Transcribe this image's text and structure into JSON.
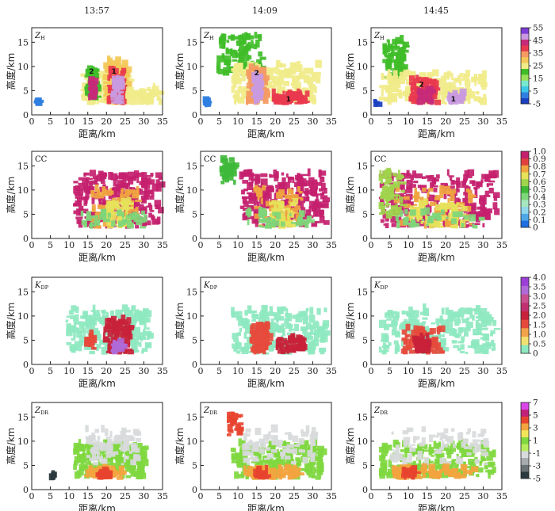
{
  "figure": {
    "column_times": [
      "13:57",
      "14:09",
      "14:45"
    ],
    "x_axis_label": "距离/km",
    "y_axis_label": "高度/km"
  },
  "chart_data": {
    "type": "heatmap",
    "panel_type": "radar RHI cross-sections",
    "x_axis": {
      "label": "距离/km",
      "range": [
        0,
        35
      ],
      "ticks": [
        0,
        5,
        10,
        15,
        20,
        25,
        30,
        35
      ]
    },
    "y_axis": {
      "label": "高度/km",
      "range": [
        0,
        18
      ],
      "ticks": [
        0,
        5,
        10,
        15
      ]
    },
    "rows": [
      {
        "variable": "ZH",
        "variable_main": "Z",
        "variable_sub": "H",
        "colorbar": {
          "ticks": [
            "-5",
            "5",
            "15",
            "25",
            "35",
            "45",
            "55"
          ],
          "colors": [
            "#1a3fbf",
            "#2f7fe0",
            "#3ec8e8",
            "#79e8d0",
            "#9be05a",
            "#3fbd28",
            "#f1ec8a",
            "#f3c95a",
            "#f49a63",
            "#e9394e",
            "#c62a78",
            "#c99adf",
            "#7e3ed6"
          ]
        },
        "cells_annotated": [
          [
            "2",
            "1"
          ],
          [
            "2",
            "1"
          ],
          [
            "2",
            "1"
          ]
        ]
      },
      {
        "variable": "CC",
        "variable_main": "CC",
        "variable_sub": "",
        "colorbar": {
          "ticks": [
            "0",
            "0.1",
            "0.2",
            "0.3",
            "0.4",
            "0.5",
            "0.6",
            "0.7",
            "0.8",
            "0.9",
            "1.0"
          ],
          "colors": [
            "#1f6fe0",
            "#4ea8e8",
            "#8fd6ea",
            "#a8e6c0",
            "#7ed67a",
            "#3fb83a",
            "#9fd44c",
            "#e6e25a",
            "#f0a540",
            "#e04040",
            "#c4206e"
          ]
        }
      },
      {
        "variable": "KDP",
        "variable_main": "K",
        "variable_sub": "DP",
        "colorbar": {
          "ticks": [
            "0",
            "0.5",
            "1.0",
            "1.5",
            "2.0",
            "2.5",
            "3.0",
            "3.5",
            "4.0"
          ],
          "colors": [
            "#8ee8c0",
            "#f1e070",
            "#f2a24a",
            "#e64a3c",
            "#c8223a",
            "#c0306e",
            "#c8508e",
            "#b06ad8",
            "#9b3fd8"
          ]
        }
      },
      {
        "variable": "ZDR",
        "variable_main": "Z",
        "variable_sub": "DR",
        "colorbar": {
          "ticks": [
            "-5",
            "-3",
            "-1",
            "1",
            "3",
            "5",
            "7"
          ],
          "colors": [
            "#2b3a3f",
            "#6a7275",
            "#a6abad",
            "#d8dadb",
            "#b6ec5c",
            "#7fd83f",
            "#f2e55a",
            "#f3a43f",
            "#e7432f",
            "#c0207a",
            "#d946e8"
          ]
        }
      }
    ],
    "columns": [
      "13:57",
      "14:09",
      "14:45"
    ]
  }
}
